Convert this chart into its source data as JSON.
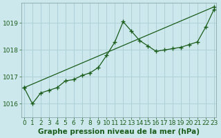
{
  "title": "Graphe pression niveau de la mer (hPa)",
  "bg_color": "#cce8ed",
  "grid_color": "#b0d0d8",
  "line_color": "#1a5c1a",
  "marker_color": "#1a5c1a",
  "ylim": [
    1015.5,
    1019.75
  ],
  "yticks": [
    1016,
    1017,
    1018,
    1019
  ],
  "xlim": [
    -0.3,
    23.3
  ],
  "xticks": [
    0,
    1,
    2,
    3,
    4,
    5,
    6,
    7,
    8,
    9,
    10,
    11,
    12,
    13,
    14,
    15,
    16,
    17,
    18,
    19,
    20,
    21,
    22,
    23
  ],
  "series1_x": [
    0,
    23
  ],
  "series1_y": [
    1016.6,
    1019.6
  ],
  "series2_x": [
    0,
    1,
    2,
    3,
    4,
    5,
    6,
    7,
    8,
    9,
    10,
    11,
    12,
    13,
    14,
    15,
    16,
    17,
    18,
    19,
    20,
    21,
    22,
    23
  ],
  "series2_y": [
    1016.6,
    1016.0,
    1016.4,
    1016.5,
    1016.6,
    1016.85,
    1016.9,
    1017.05,
    1017.15,
    1017.35,
    1017.8,
    1018.3,
    1019.05,
    1018.7,
    1018.35,
    1018.15,
    1017.95,
    1018.0,
    1018.05,
    1018.1,
    1018.2,
    1018.3,
    1018.85,
    1019.5
  ],
  "title_fontsize": 7.5,
  "tick_fontsize": 6.5
}
